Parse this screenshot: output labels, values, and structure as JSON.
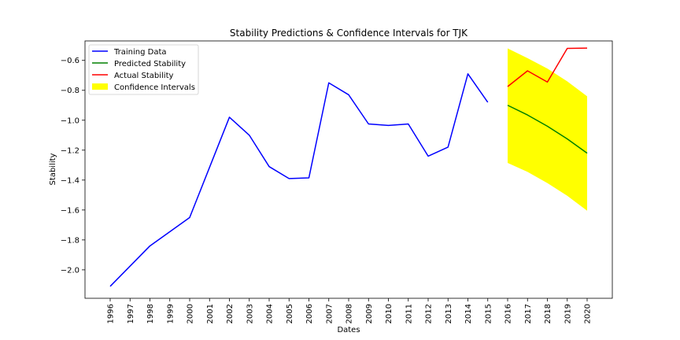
{
  "chart_data": {
    "type": "line",
    "title": "Stability Predictions & Confidence Intervals for TJK",
    "xlabel": "Dates",
    "ylabel": "Stability",
    "categories": [
      "1996",
      "1997",
      "1998",
      "1999",
      "2000",
      "2001",
      "2002",
      "2003",
      "2004",
      "2005",
      "2006",
      "2007",
      "2008",
      "2009",
      "2010",
      "2011",
      "2012",
      "2013",
      "2014",
      "2015",
      "2016",
      "2017",
      "2018",
      "2019",
      "2020"
    ],
    "ylim": [
      -2.19,
      -0.47
    ],
    "yticks": [
      -2.0,
      -1.8,
      -1.6,
      -1.4,
      -1.2,
      -1.0,
      -0.8,
      -0.6
    ],
    "ytick_labels": [
      "−2.0",
      "−1.8",
      "−1.6",
      "−1.4",
      "−1.2",
      "−1.0",
      "−0.8",
      "−0.6"
    ],
    "grid": false,
    "legend_position": "top-left",
    "series": [
      {
        "name": "Training Data",
        "color": "#0000ff",
        "x": [
          "1996",
          "1998",
          "2000",
          "2002",
          "2003",
          "2004",
          "2005",
          "2006",
          "2007",
          "2008",
          "2009",
          "2010",
          "2011",
          "2012",
          "2013",
          "2014",
          "2015"
        ],
        "values": [
          -2.11,
          -1.84,
          -1.65,
          -0.98,
          -1.1,
          -1.31,
          -1.39,
          -1.385,
          -0.75,
          -0.83,
          -1.025,
          -1.035,
          -1.025,
          -1.24,
          -1.18,
          -0.69,
          -0.88
        ]
      },
      {
        "name": "Predicted Stability",
        "color": "#008000",
        "x": [
          "2016",
          "2017",
          "2018",
          "2019",
          "2020"
        ],
        "values": [
          -0.9,
          -0.965,
          -1.04,
          -1.125,
          -1.22
        ]
      },
      {
        "name": "Actual Stability",
        "color": "#ff0000",
        "x": [
          "2016",
          "2017",
          "2018",
          "2019",
          "2020"
        ],
        "values": [
          -0.775,
          -0.67,
          -0.745,
          -0.52,
          -0.518
        ]
      }
    ],
    "confidence_interval": {
      "name": "Confidence Intervals",
      "color": "#ffff00",
      "x": [
        "2016",
        "2017",
        "2018",
        "2019",
        "2020"
      ],
      "upper": [
        -0.52,
        -0.585,
        -0.655,
        -0.74,
        -0.84
      ],
      "lower": [
        -1.285,
        -1.345,
        -1.42,
        -1.505,
        -1.605
      ]
    }
  }
}
